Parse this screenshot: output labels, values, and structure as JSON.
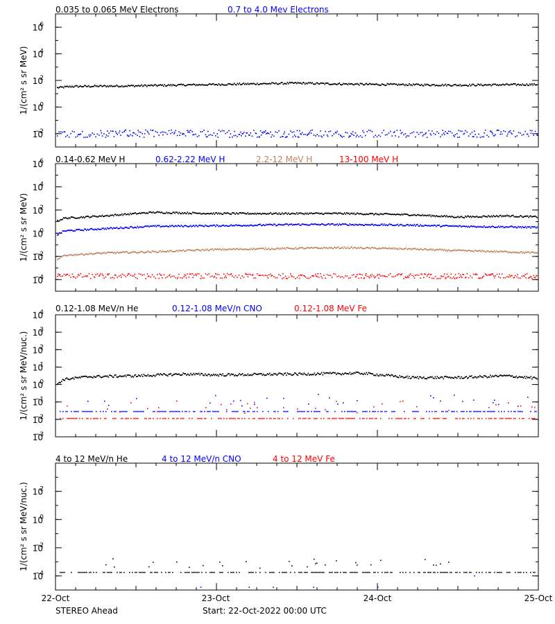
{
  "footer": {
    "spacecraft": "STEREO Ahead",
    "start": "Start: 22-Oct-2022 00:00 UTC"
  },
  "x_axis": {
    "ticks": [
      {
        "x": 0,
        "label": "22-Oct"
      },
      {
        "x": 1,
        "label": "23-Oct"
      },
      {
        "x": 2,
        "label": "24-Oct"
      },
      {
        "x": 3,
        "label": "25-Oct"
      }
    ],
    "range": [
      0,
      3
    ],
    "unit": "days"
  },
  "chart_data": [
    {
      "type": "scatter",
      "ylabel": "1/(cm² s sr MeV)",
      "yscale": "log",
      "ylim_exp": [
        -3,
        7
      ],
      "major_exps": [
        -2,
        0,
        2,
        4,
        6
      ],
      "series": [
        {
          "name": "0.035 to 0.065 MeV Electrons",
          "color": "#000000",
          "style": "dense",
          "x": [
            0,
            0.1,
            0.5,
            1.0,
            1.5,
            1.7,
            2.0,
            2.5,
            3.0
          ],
          "log_y": [
            1.45,
            1.55,
            1.6,
            1.7,
            1.8,
            1.75,
            1.7,
            1.65,
            1.7
          ]
        },
        {
          "name": "0.7 to 4.0 Mev Electrons",
          "color": "#0000ff",
          "style": "noisy",
          "noise": 0.28,
          "x": [
            0,
            3
          ],
          "log_y": [
            -2.0,
            -2.0
          ]
        }
      ]
    },
    {
      "type": "scatter",
      "ylabel": "1/(cm² s sr MeV)",
      "yscale": "log",
      "ylim_exp": [
        -5,
        6
      ],
      "major_exps": [
        -4,
        -2,
        0,
        2,
        4,
        6
      ],
      "series": [
        {
          "name": "0.14-0.62 MeV H",
          "color": "#000000",
          "style": "dense",
          "x": [
            0,
            0.05,
            0.3,
            0.6,
            1.0,
            1.5,
            1.8,
            2.2,
            2.5,
            2.8,
            3.0
          ],
          "log_y": [
            1.0,
            1.3,
            1.5,
            1.8,
            1.7,
            1.7,
            1.7,
            1.6,
            1.4,
            1.5,
            1.4
          ]
        },
        {
          "name": "0.62-2.22 MeV H",
          "color": "#0000ff",
          "style": "dense",
          "x": [
            0,
            0.05,
            0.3,
            0.6,
            1.0,
            1.5,
            1.8,
            2.2,
            2.5,
            2.8,
            3.0
          ],
          "log_y": [
            -0.2,
            0.2,
            0.4,
            0.6,
            0.65,
            0.75,
            0.75,
            0.7,
            0.6,
            0.55,
            0.5
          ]
        },
        {
          "name": "2.2-12 MeV H",
          "color": "#c08060",
          "style": "dense",
          "x": [
            0,
            0.05,
            0.3,
            0.6,
            1.0,
            1.5,
            1.8,
            2.2,
            2.5,
            2.8,
            3.0
          ],
          "log_y": [
            -2.4,
            -1.9,
            -1.7,
            -1.6,
            -1.4,
            -1.3,
            -1.25,
            -1.35,
            -1.5,
            -1.6,
            -1.7
          ]
        },
        {
          "name": "13-100 MeV H",
          "color": "#ff0000",
          "style": "noisy",
          "noise": 0.22,
          "x": [
            0,
            3
          ],
          "log_y": [
            -3.7,
            -3.7
          ]
        }
      ]
    },
    {
      "type": "scatter",
      "ylabel": "1/(cm² s sr MeV/nuc.)",
      "yscale": "log",
      "ylim_exp": [
        -3,
        4
      ],
      "major_exps": [
        -3,
        -2,
        -1,
        0,
        1,
        2,
        3,
        4
      ],
      "series": [
        {
          "name": "0.12-1.08 MeV/n He",
          "color": "#000000",
          "style": "dense",
          "x": [
            0,
            0.05,
            0.2,
            0.5,
            0.8,
            1.0,
            1.5,
            1.9,
            2.2,
            2.5,
            2.8,
            3.0
          ],
          "log_y": [
            0.0,
            0.3,
            0.45,
            0.5,
            0.6,
            0.55,
            0.6,
            0.65,
            0.4,
            0.4,
            0.5,
            0.35
          ]
        },
        {
          "name": "0.12-1.08 MeV/n CNO",
          "color": "#0000ff",
          "style": "floor",
          "x": [
            0,
            3
          ],
          "log_y": [
            -1.55,
            -1.55
          ]
        },
        {
          "name": "0.12-1.08 MeV Fe",
          "color": "#ff0000",
          "style": "floor",
          "x": [
            0,
            3
          ],
          "log_y": [
            -1.95,
            -1.95
          ]
        }
      ]
    },
    {
      "type": "scatter",
      "ylabel": "1/(cm² s sr MeV/nuc.)",
      "yscale": "log",
      "ylim_exp": [
        -5,
        4
      ],
      "major_exps": [
        -4,
        -2,
        0,
        2
      ],
      "series": [
        {
          "name": "4 to 12 MeV/n He",
          "color": "#000000",
          "style": "floor",
          "x": [
            0,
            3
          ],
          "log_y": [
            -3.75,
            -3.75
          ]
        },
        {
          "name": "4 to 12 MeV/n CNO",
          "color": "#0000ff",
          "style": "sparse",
          "x": [
            0.9,
            1.2,
            1.35,
            1.6,
            2.0,
            2.6
          ],
          "log_y": [
            -4.8,
            -4.8,
            -4.8,
            -4.8,
            -4.8,
            -4.0
          ]
        },
        {
          "name": "4 to 12 MeV Fe",
          "color": "#ff0000",
          "style": "none",
          "x": [],
          "log_y": []
        }
      ]
    }
  ]
}
